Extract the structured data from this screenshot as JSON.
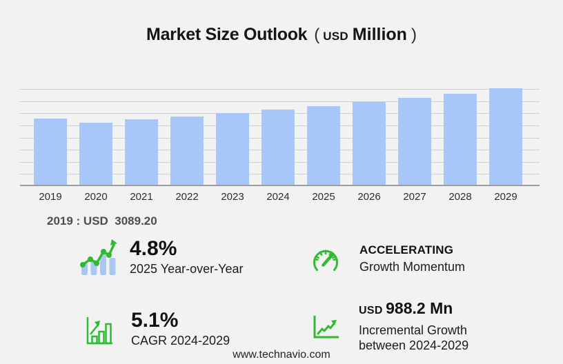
{
  "title": {
    "main": "Market Size Outlook",
    "open": "(",
    "unit_small": "USD",
    "unit_large": "Million",
    "close": ")"
  },
  "chart_data": {
    "type": "bar",
    "categories": [
      "2019",
      "2020",
      "2021",
      "2022",
      "2023",
      "2024",
      "2025",
      "2026",
      "2027",
      "2028",
      "2029"
    ],
    "values": [
      3089.2,
      2915,
      3045,
      3195,
      3365,
      3509,
      3678,
      3851,
      4066,
      4251,
      4497
    ],
    "title": "Market Size Outlook (USD Million)",
    "xlabel": "",
    "ylabel": "USD Million",
    "ylim": [
      0,
      4540
    ],
    "grid": true,
    "gridline_count": 8,
    "legend": "none",
    "annotation": "2019 : USD  3089.20"
  },
  "stats": [
    {
      "icon": "yoy-trend-icon",
      "value": "4.8%",
      "label": "2025 Year-over-Year"
    },
    {
      "icon": "gauge-icon",
      "value": "ACCELERATING",
      "label": "Growth Momentum"
    },
    {
      "icon": "cagr-bars-icon",
      "value": "5.1%",
      "label": "CAGR 2024-2029"
    },
    {
      "icon": "growth-axis-icon",
      "value_prefix": "USD",
      "value": "988.2 Mn",
      "label": "Incremental Growth",
      "label2": "between 2024-2029"
    }
  ],
  "footer": {
    "website": "www.technavio.com"
  },
  "colors": {
    "background": "#f2f2f3",
    "bar": "#a7c7fb",
    "gridline": "#cfcfd2",
    "axis": "#9c9c9e",
    "accent_green": "#2fbb2f",
    "icon_bar_blue": "#a9c8f1"
  }
}
